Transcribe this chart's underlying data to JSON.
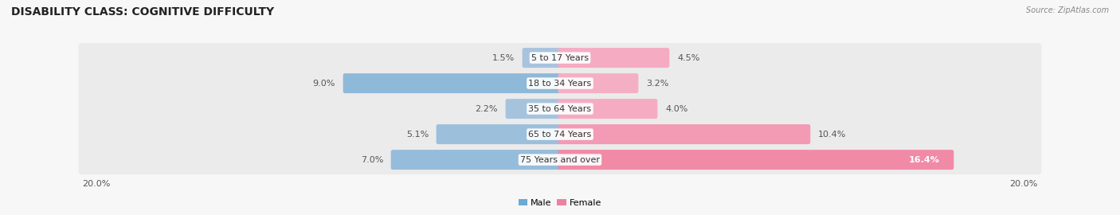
{
  "title": "DISABILITY CLASS: COGNITIVE DIFFICULTY",
  "source": "Source: ZipAtlas.com",
  "categories": [
    "5 to 17 Years",
    "18 to 34 Years",
    "35 to 64 Years",
    "65 to 74 Years",
    "75 Years and over"
  ],
  "male_values": [
    1.5,
    9.0,
    2.2,
    5.1,
    7.0
  ],
  "female_values": [
    4.5,
    3.2,
    4.0,
    10.4,
    16.4
  ],
  "male_color_light": "#aec6e0",
  "male_color_dark": "#6aabd2",
  "female_color_light": "#f7b8cc",
  "female_color_dark": "#f080a0",
  "row_bg_color": "#ebebeb",
  "fig_bg_color": "#f7f7f7",
  "max_val": 20.0,
  "title_fontsize": 10,
  "label_fontsize": 8,
  "value_fontsize": 8,
  "source_fontsize": 8
}
